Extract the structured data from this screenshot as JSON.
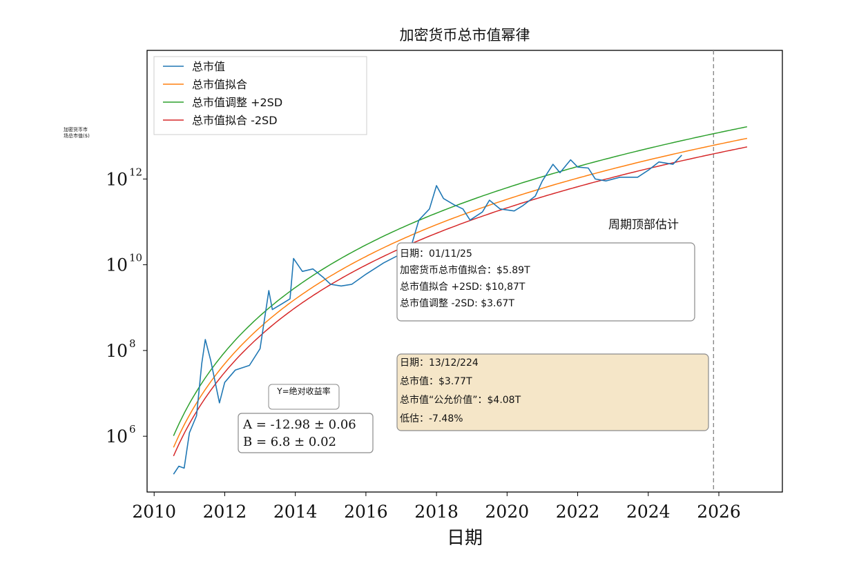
{
  "chart_data": {
    "type": "line",
    "title": "加密货币总市值幂律",
    "xlabel": "日期",
    "ylabel": "加密货币市场总市值($)",
    "yscale": "log",
    "xlim": [
      2009.8,
      2027.8
    ],
    "ylim": [
      50000,
      1000000000000000
    ],
    "x_ticks": [
      2010,
      2012,
      2014,
      2016,
      2018,
      2020,
      2022,
      2024,
      2026
    ],
    "x_tick_labels": [
      "2010",
      "2012",
      "2014",
      "2016",
      "2018",
      "2020",
      "2022",
      "2024",
      "2026"
    ],
    "y_ticks": [
      {
        "base": "10",
        "exp": "6",
        "value": 1000000
      },
      {
        "base": "10",
        "exp": "8",
        "value": 100000000
      },
      {
        "base": "10",
        "exp": "10",
        "value": 10000000000
      },
      {
        "base": "10",
        "exp": "12",
        "value": 1000000000000
      }
    ],
    "vertical_line": {
      "x": 2025.85,
      "style": "dashed",
      "color": "#888888"
    },
    "legend_position": "top-left",
    "series": [
      {
        "name": "总市值",
        "color": "#1f77b4",
        "points": [
          [
            2010.55,
            130000
          ],
          [
            2010.7,
            200000
          ],
          [
            2010.85,
            180000
          ],
          [
            2011.0,
            1200000
          ],
          [
            2011.2,
            3000000
          ],
          [
            2011.35,
            50000000
          ],
          [
            2011.45,
            180000000
          ],
          [
            2011.6,
            60000000
          ],
          [
            2011.85,
            6000000
          ],
          [
            2012.0,
            18000000
          ],
          [
            2012.3,
            35000000
          ],
          [
            2012.7,
            45000000
          ],
          [
            2013.0,
            110000000
          ],
          [
            2013.25,
            2500000000
          ],
          [
            2013.35,
            900000000
          ],
          [
            2013.6,
            1200000000
          ],
          [
            2013.85,
            1600000000
          ],
          [
            2013.95,
            14000000000
          ],
          [
            2014.2,
            7000000000
          ],
          [
            2014.5,
            8000000000
          ],
          [
            2014.8,
            5000000000
          ],
          [
            2015.0,
            3500000000
          ],
          [
            2015.3,
            3200000000
          ],
          [
            2015.6,
            3500000000
          ],
          [
            2016.0,
            6000000000
          ],
          [
            2016.5,
            11000000000
          ],
          [
            2017.0,
            18000000000
          ],
          [
            2017.3,
            30000000000
          ],
          [
            2017.5,
            110000000000
          ],
          [
            2017.8,
            200000000000
          ],
          [
            2018.0,
            700000000000
          ],
          [
            2018.2,
            350000000000
          ],
          [
            2018.5,
            250000000000
          ],
          [
            2018.75,
            200000000000
          ],
          [
            2018.95,
            110000000000
          ],
          [
            2019.3,
            170000000000
          ],
          [
            2019.5,
            320000000000
          ],
          [
            2019.8,
            200000000000
          ],
          [
            2020.2,
            180000000000
          ],
          [
            2020.45,
            240000000000
          ],
          [
            2020.8,
            400000000000
          ],
          [
            2021.0,
            900000000000
          ],
          [
            2021.3,
            2200000000000
          ],
          [
            2021.5,
            1400000000000
          ],
          [
            2021.8,
            2800000000000
          ],
          [
            2022.0,
            1900000000000
          ],
          [
            2022.3,
            1800000000000
          ],
          [
            2022.5,
            1000000000000
          ],
          [
            2022.8,
            900000000000
          ],
          [
            2023.2,
            1100000000000
          ],
          [
            2023.7,
            1100000000000
          ],
          [
            2024.0,
            1600000000000
          ],
          [
            2024.3,
            2500000000000
          ],
          [
            2024.7,
            2200000000000
          ],
          [
            2024.95,
            3600000000000
          ]
        ]
      },
      {
        "name": "总市值拟合",
        "color": "#ff7f0e",
        "A": -12.98,
        "B": 6.8,
        "offset_log10": 0,
        "x_range": [
          2010.55,
          2026.8
        ]
      },
      {
        "name": "总市值调整 +2SD",
        "color": "#2ca02c",
        "A": -12.98,
        "B": 6.8,
        "offset_log10": 0.27,
        "x_range": [
          2010.55,
          2026.8
        ]
      },
      {
        "name": "总市值拟合 -2SD",
        "color": "#d62728",
        "A": -12.98,
        "B": 6.8,
        "offset_log10": -0.2,
        "x_range": [
          2010.55,
          2026.8
        ]
      }
    ],
    "annotations": {
      "cycle_top_title": "周期顶部估计",
      "cycle_top_lines": [
        "日期：01/11/25",
        "加密货币总市值拟合：$5.89T",
        "总市值拟合 +2SD: $10,87T",
        "总市值调整 -2SD: $3.67T"
      ],
      "current_lines": [
        "日期：13/12/224",
        "总市值：$3.77T",
        "总市值“公允价值”：$4.08T",
        "低估：-7.48%"
      ],
      "fit_title": "Y=绝对收益率",
      "fit_lines": [
        "A = -12.98 ± 0.06",
        "B = 6.8 ± 0.02"
      ]
    }
  },
  "colors": {
    "current_box_fill": "#f5e6c8",
    "current_box_border": "#8a8a8a",
    "box_border": "#8a8a8a"
  }
}
